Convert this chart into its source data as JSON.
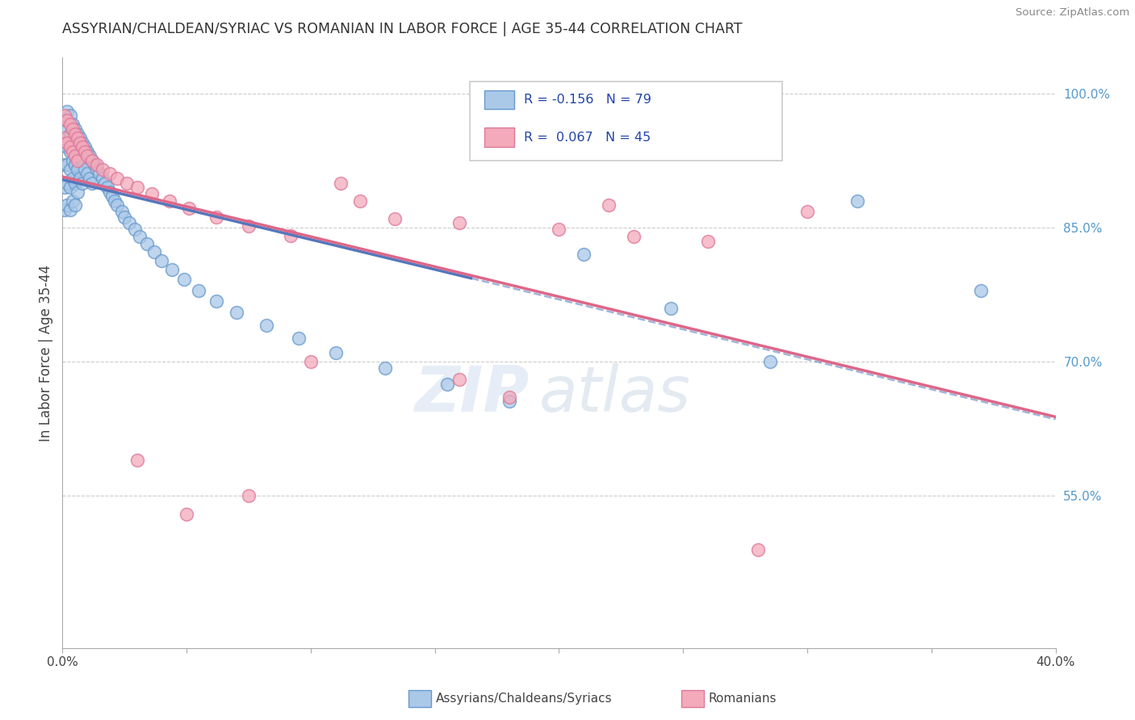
{
  "title": "ASSYRIAN/CHALDEAN/SYRIAC VS ROMANIAN IN LABOR FORCE | AGE 35-44 CORRELATION CHART",
  "source": "Source: ZipAtlas.com",
  "ylabel": "In Labor Force | Age 35-44",
  "xlim": [
    0.0,
    0.4
  ],
  "ylim": [
    0.38,
    1.04
  ],
  "right_yticks": [
    1.0,
    0.85,
    0.7,
    0.55
  ],
  "right_yticklabels": [
    "100.0%",
    "85.0%",
    "70.0%",
    "55.0%"
  ],
  "legend_label1": "Assyrians/Chaldeans/Syriacs",
  "legend_label2": "Romanians",
  "blue_fill": "#aac8e8",
  "blue_edge": "#6699cc",
  "pink_fill": "#f4aabb",
  "pink_edge": "#dd7799",
  "blue_line_color": "#5577bb",
  "pink_line_color": "#dd6688",
  "watermark_zip": "ZIP",
  "watermark_atlas": "atlas",
  "background_color": "#ffffff",
  "grid_color": "#cccccc",
  "blue_scatter_x": [
    0.001,
    0.001,
    0.001,
    0.001,
    0.001,
    0.002,
    0.002,
    0.002,
    0.002,
    0.002,
    0.002,
    0.003,
    0.003,
    0.003,
    0.003,
    0.003,
    0.003,
    0.004,
    0.004,
    0.004,
    0.004,
    0.004,
    0.005,
    0.005,
    0.005,
    0.005,
    0.005,
    0.006,
    0.006,
    0.006,
    0.006,
    0.007,
    0.007,
    0.007,
    0.008,
    0.008,
    0.008,
    0.009,
    0.009,
    0.01,
    0.01,
    0.011,
    0.011,
    0.012,
    0.012,
    0.013,
    0.014,
    0.015,
    0.016,
    0.017,
    0.018,
    0.019,
    0.02,
    0.021,
    0.022,
    0.024,
    0.025,
    0.027,
    0.029,
    0.031,
    0.034,
    0.037,
    0.04,
    0.044,
    0.049,
    0.055,
    0.062,
    0.07,
    0.082,
    0.095,
    0.11,
    0.13,
    0.155,
    0.18,
    0.21,
    0.245,
    0.285,
    0.32,
    0.37
  ],
  "blue_scatter_y": [
    0.97,
    0.945,
    0.92,
    0.895,
    0.87,
    0.98,
    0.96,
    0.94,
    0.92,
    0.9,
    0.875,
    0.975,
    0.955,
    0.935,
    0.915,
    0.895,
    0.87,
    0.965,
    0.945,
    0.925,
    0.905,
    0.88,
    0.96,
    0.94,
    0.92,
    0.9,
    0.875,
    0.955,
    0.935,
    0.915,
    0.89,
    0.95,
    0.93,
    0.905,
    0.945,
    0.925,
    0.9,
    0.94,
    0.915,
    0.935,
    0.91,
    0.93,
    0.905,
    0.925,
    0.9,
    0.92,
    0.915,
    0.91,
    0.905,
    0.9,
    0.895,
    0.89,
    0.885,
    0.88,
    0.875,
    0.868,
    0.862,
    0.855,
    0.848,
    0.84,
    0.832,
    0.823,
    0.813,
    0.803,
    0.792,
    0.78,
    0.768,
    0.755,
    0.741,
    0.726,
    0.71,
    0.693,
    0.675,
    0.656,
    0.82,
    0.76,
    0.7,
    0.88,
    0.78
  ],
  "pink_scatter_x": [
    0.001,
    0.001,
    0.002,
    0.002,
    0.003,
    0.003,
    0.004,
    0.004,
    0.005,
    0.005,
    0.006,
    0.006,
    0.007,
    0.008,
    0.009,
    0.01,
    0.012,
    0.014,
    0.016,
    0.019,
    0.022,
    0.026,
    0.03,
    0.036,
    0.043,
    0.051,
    0.062,
    0.075,
    0.092,
    0.112,
    0.134,
    0.16,
    0.2,
    0.23,
    0.26,
    0.3,
    0.16,
    0.1,
    0.18,
    0.22,
    0.05,
    0.075,
    0.03,
    0.12,
    0.28
  ],
  "pink_scatter_y": [
    0.975,
    0.95,
    0.97,
    0.945,
    0.965,
    0.94,
    0.96,
    0.935,
    0.955,
    0.93,
    0.95,
    0.925,
    0.945,
    0.94,
    0.935,
    0.93,
    0.925,
    0.92,
    0.915,
    0.91,
    0.905,
    0.9,
    0.895,
    0.888,
    0.88,
    0.872,
    0.862,
    0.852,
    0.841,
    0.9,
    0.86,
    0.855,
    0.848,
    0.84,
    0.835,
    0.868,
    0.68,
    0.7,
    0.66,
    0.875,
    0.53,
    0.55,
    0.59,
    0.88,
    0.49
  ]
}
